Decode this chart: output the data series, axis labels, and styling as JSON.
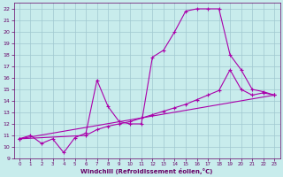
{
  "xlabel": "Windchill (Refroidissement éolien,°C)",
  "xlim": [
    -0.5,
    23.5
  ],
  "ylim": [
    9,
    22.5
  ],
  "xticks": [
    0,
    1,
    2,
    3,
    4,
    5,
    6,
    7,
    8,
    9,
    10,
    11,
    12,
    13,
    14,
    15,
    16,
    17,
    18,
    19,
    20,
    21,
    22,
    23
  ],
  "yticks": [
    9,
    10,
    11,
    12,
    13,
    14,
    15,
    16,
    17,
    18,
    19,
    20,
    21,
    22
  ],
  "bg_color": "#c8ecec",
  "grid_color": "#a0c8d0",
  "line_color": "#aa00aa",
  "line1_x": [
    0,
    1,
    2,
    3,
    4,
    5,
    6,
    7,
    8,
    9,
    10,
    11,
    12,
    13,
    14,
    15,
    16,
    17,
    18,
    19,
    20,
    21,
    22,
    23
  ],
  "line1_y": [
    10.7,
    11.0,
    10.3,
    10.7,
    9.5,
    10.8,
    11.2,
    15.8,
    13.5,
    12.2,
    12.0,
    12.0,
    17.8,
    18.4,
    20.0,
    21.8,
    22.0,
    22.0,
    22.0,
    18.0,
    16.7,
    15.0,
    14.8,
    14.5
  ],
  "line2_x": [
    0,
    6,
    7,
    8,
    9,
    10,
    11,
    12,
    13,
    14,
    15,
    16,
    17,
    18,
    19,
    20,
    21,
    22,
    23
  ],
  "line2_y": [
    10.7,
    11.0,
    11.5,
    11.8,
    12.0,
    12.2,
    12.5,
    12.8,
    13.1,
    13.4,
    13.7,
    14.1,
    14.5,
    14.9,
    16.7,
    15.0,
    14.5,
    14.7,
    14.5
  ],
  "line3_x": [
    0,
    23
  ],
  "line3_y": [
    10.7,
    14.5
  ]
}
